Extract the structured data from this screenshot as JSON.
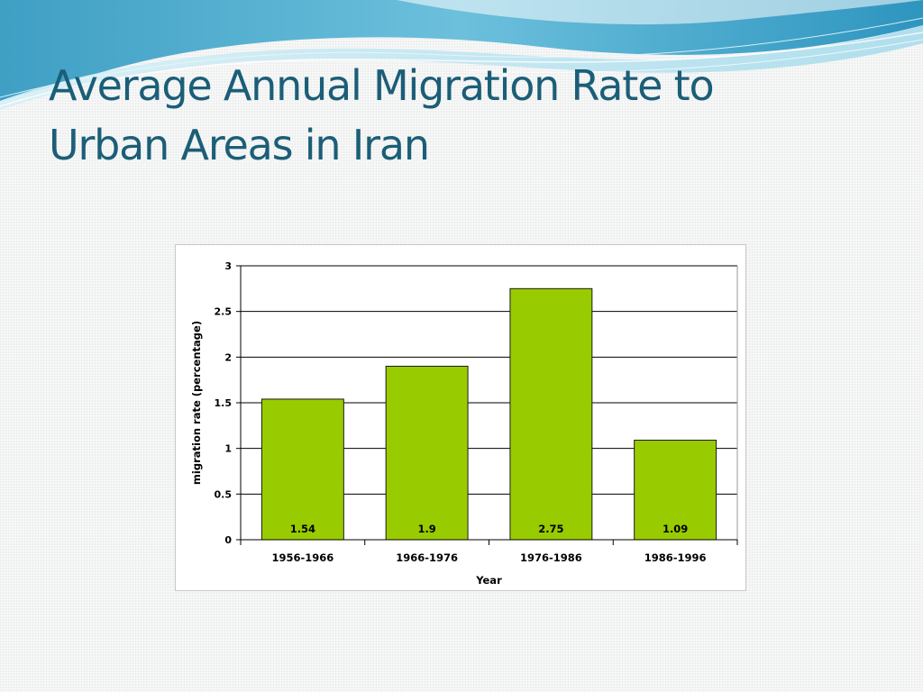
{
  "slide": {
    "title_line1": "Average Annual Migration Rate to",
    "title_line2": "Urban Areas in Iran"
  },
  "colors": {
    "title": "#1b5e78",
    "bar_fill": "#99cc00",
    "bar_stroke": "#1a1a1a",
    "wave_dark": "#3aa6c9",
    "wave_light": "#bfe5f2"
  },
  "chart_data": {
    "type": "bar",
    "title": "",
    "xlabel": "Year",
    "ylabel": "migration rate (percentage)",
    "categories": [
      "1956-1966",
      "1966-1976",
      "1976-1986",
      "1986-1996"
    ],
    "values": [
      1.54,
      1.9,
      2.75,
      1.09
    ],
    "value_labels": [
      "1.54",
      "1.9",
      "2.75",
      "1.09"
    ],
    "ylim": [
      0,
      3
    ],
    "yticks": [
      0,
      0.5,
      1,
      1.5,
      2,
      2.5,
      3
    ],
    "ytick_labels": [
      "0",
      "0.5",
      "1",
      "1.5",
      "2",
      "2.5",
      "3"
    ],
    "grid": true,
    "legend": "none"
  }
}
